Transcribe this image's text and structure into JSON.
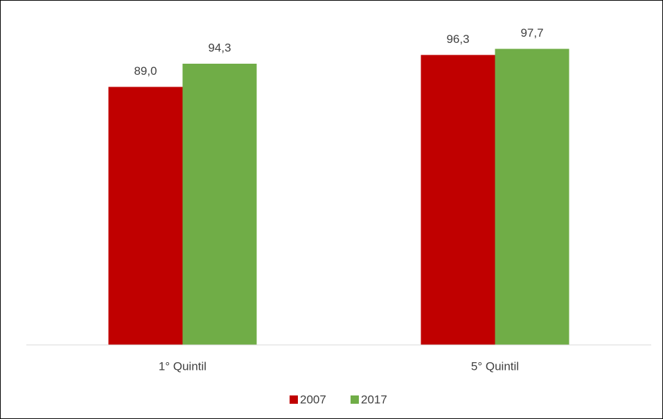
{
  "chart_data": {
    "type": "bar",
    "categories": [
      "1° Quintil",
      "5° Quintil"
    ],
    "series": [
      {
        "name": "2007",
        "color": "#c00000",
        "values": [
          89.0,
          96.3
        ],
        "value_labels": [
          "89,0",
          "96,3"
        ]
      },
      {
        "name": "2017",
        "color": "#70ad47",
        "values": [
          94.3,
          97.7
        ],
        "value_labels": [
          "94,3",
          "97,7"
        ]
      }
    ],
    "ylim": [
      30,
      100
    ]
  }
}
